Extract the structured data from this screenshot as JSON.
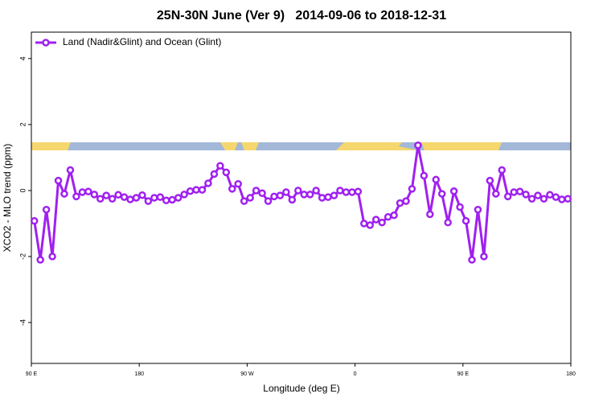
{
  "chart_data": {
    "type": "line",
    "title": "25N-30N June (Ver 9)   2014-09-06 to 2018-12-31",
    "x_label": "Longitude (deg E)",
    "y_label": "XCO2 - MLO trend (ppm)",
    "xlim": [
      90,
      540
    ],
    "ylim": [
      -5.24,
      4.8
    ],
    "xticks": [
      {
        "value": 90,
        "label": "90 E"
      },
      180,
      {
        "value": 270,
        "label": "90 W"
      },
      {
        "value": 360,
        "label": "0"
      },
      {
        "value": 450,
        "label": "90 E"
      },
      {
        "value": 540,
        "label": "180"
      }
    ],
    "yticks": [
      -4,
      -2,
      0,
      2,
      4
    ],
    "legend_position": "top-left",
    "x": [
      92.5,
      97.5,
      102.5,
      107.5,
      112.5,
      117.5,
      122.5,
      127.5,
      132.5,
      137.5,
      142.5,
      147.5,
      152.5,
      157.5,
      162.5,
      167.5,
      172.5,
      177.5,
      182.5,
      187.5,
      192.5,
      197.5,
      202.5,
      207.5,
      212.5,
      217.5,
      222.5,
      227.5,
      232.5,
      237.5,
      242.5,
      247.5,
      252.5,
      257.5,
      262.5,
      267.5,
      272.5,
      277.5,
      282.5,
      287.5,
      292.5,
      297.5,
      302.5,
      307.5,
      312.5,
      317.5,
      322.5,
      327.5,
      332.5,
      337.5,
      342.5,
      347.5,
      352.5,
      357.5,
      362.5,
      367.5,
      372.5,
      377.5,
      382.5,
      387.5,
      392.5,
      397.5,
      402.5,
      407.5,
      412.5,
      417.5,
      422.5,
      427.5,
      432.5,
      437.5,
      442.5,
      447.5,
      452.5,
      457.5,
      462.5,
      467.5,
      472.5,
      477.5,
      482.5,
      487.5,
      492.5,
      497.5,
      502.5,
      507.5,
      512.5,
      517.5,
      522.5,
      527.5,
      532.5,
      537.5
    ],
    "series": [
      {
        "name": "Land (Nadir&Glint) and Ocean (Glint)",
        "color": "#a020f0",
        "values": [
          -0.92,
          -2.1,
          -0.58,
          -2.0,
          0.3,
          -0.1,
          0.62,
          -0.18,
          -0.05,
          -0.03,
          -0.12,
          -0.25,
          -0.15,
          -0.25,
          -0.13,
          -0.2,
          -0.27,
          -0.22,
          -0.14,
          -0.32,
          -0.22,
          -0.2,
          -0.3,
          -0.28,
          -0.22,
          -0.12,
          -0.02,
          0.02,
          0.02,
          0.22,
          0.5,
          0.75,
          0.55,
          0.05,
          0.2,
          -0.32,
          -0.22,
          0.0,
          -0.08,
          -0.32,
          -0.18,
          -0.15,
          -0.05,
          -0.28,
          0.0,
          -0.12,
          -0.12,
          0.0,
          -0.22,
          -0.2,
          -0.15,
          0.0,
          -0.05,
          -0.05,
          -0.03,
          -1.0,
          -1.05,
          -0.88,
          -0.97,
          -0.8,
          -0.75,
          -0.38,
          -0.32,
          0.05,
          1.37,
          0.45,
          -0.72,
          0.33,
          -0.1,
          -0.97,
          -0.02,
          -0.5,
          -0.92,
          -2.1,
          -0.58,
          -2.0,
          0.3,
          -0.1,
          0.62,
          -0.18,
          -0.05,
          -0.03,
          -0.12,
          -0.25,
          -0.15,
          -0.25,
          -0.13,
          -0.2,
          -0.27,
          -0.25
        ]
      }
    ]
  }
}
